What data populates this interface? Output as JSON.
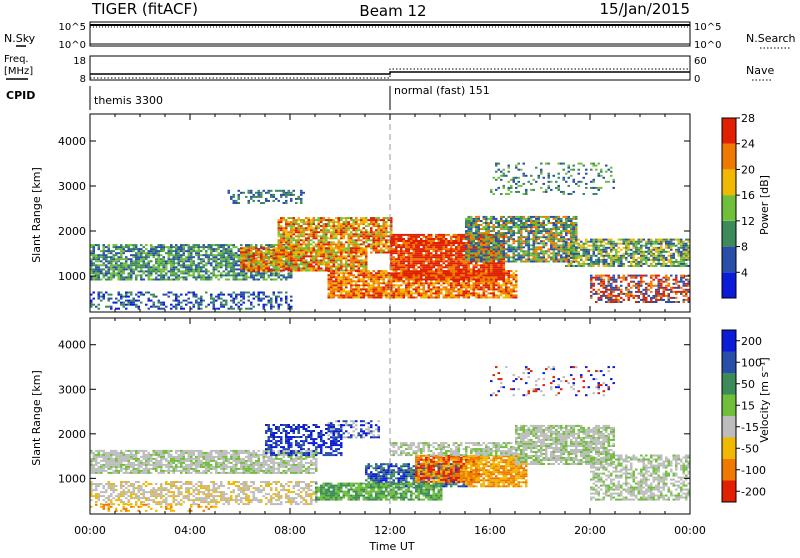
{
  "header": {
    "title": "TIGER (fitACF)",
    "beam": "Beam 12",
    "date": "15/Jan/2015"
  },
  "strip_labels": {
    "nsky": "N.Sky",
    "nsearch": "N.Search",
    "freq_line1": "Freq.",
    "freq_line2": "[MHz]",
    "nave": "Nave",
    "cpid": "CPID"
  },
  "strip_ticks": {
    "nsky_top": "10^5",
    "nsky_bottom": "10^0",
    "nsearch_top": "10^5",
    "nsearch_bottom": "10^0",
    "freq_top": "18",
    "freq_bottom": "8",
    "nave_top": "60",
    "nave_bottom": "0"
  },
  "cpid_segments": [
    {
      "label": "themis 3300",
      "start_hour": 0
    },
    {
      "label": "normal (fast) 151",
      "start_hour": 12
    }
  ],
  "axes": {
    "xlabel": "Time UT",
    "ylabel": "Slant Range [km]",
    "x_ticks": [
      "00:00",
      "04:00",
      "08:00",
      "12:00",
      "16:00",
      "20:00",
      "00:00"
    ],
    "y_ticks": [
      "1000",
      "2000",
      "3000",
      "4000"
    ]
  },
  "colorbars": {
    "power": {
      "label": "Power [dB]",
      "ticks": [
        "4",
        "8",
        "12",
        "16",
        "20",
        "24",
        "28"
      ],
      "colors": [
        "#0a1cd8",
        "#2a4fa8",
        "#3d8a5a",
        "#6fbf3a",
        "#f0b800",
        "#f07a00",
        "#e02000"
      ]
    },
    "velocity": {
      "label": "Velocity [m s⁻¹]",
      "ticks": [
        "200",
        "100",
        "50",
        "15",
        "-15",
        "-50",
        "-100",
        "-200"
      ],
      "colors": [
        "#0a1cd8",
        "#2a4fa8",
        "#3d8a5a",
        "#6fbf3a",
        "#bdbdbd",
        "#f0b800",
        "#f07a00",
        "#e02000"
      ]
    }
  },
  "chart_data": [
    {
      "type": "heatmap",
      "name": "power",
      "title": "",
      "xlabel": "Time UT",
      "ylabel": "Slant Range [km]",
      "xlim": [
        0,
        24
      ],
      "ylim": [
        200,
        4600
      ],
      "bands": [
        {
          "t0": 0.0,
          "t1": 8.0,
          "r0": 900,
          "r1": 1700,
          "levels": [
            1,
            2,
            3
          ],
          "density": 0.75
        },
        {
          "t0": 6.0,
          "t1": 11.0,
          "r0": 1100,
          "r1": 1600,
          "levels": [
            3,
            4,
            5,
            6
          ],
          "density": 0.85
        },
        {
          "t0": 7.5,
          "t1": 12.0,
          "r0": 1500,
          "r1": 2300,
          "levels": [
            3,
            4,
            5,
            6
          ],
          "density": 0.8
        },
        {
          "t0": 9.5,
          "t1": 17.0,
          "r0": 500,
          "r1": 1100,
          "levels": [
            4,
            5,
            6
          ],
          "density": 0.85
        },
        {
          "t0": 12.0,
          "t1": 16.5,
          "r0": 900,
          "r1": 1900,
          "levels": [
            5,
            6,
            6
          ],
          "density": 0.9
        },
        {
          "t0": 15.0,
          "t1": 19.5,
          "r0": 1300,
          "r1": 2300,
          "levels": [
            1,
            2,
            3,
            5
          ],
          "density": 0.8
        },
        {
          "t0": 19.0,
          "t1": 24.0,
          "r0": 1200,
          "r1": 1800,
          "levels": [
            1,
            2,
            3,
            4
          ],
          "density": 0.75
        },
        {
          "t0": 20.0,
          "t1": 24.0,
          "r0": 400,
          "r1": 1000,
          "levels": [
            1,
            5,
            6
          ],
          "density": 0.6
        },
        {
          "t0": 0.0,
          "t1": 8.0,
          "r0": 250,
          "r1": 650,
          "levels": [
            0,
            1,
            2
          ],
          "density": 0.4
        },
        {
          "t0": 5.5,
          "t1": 8.5,
          "r0": 2600,
          "r1": 2900,
          "levels": [
            1,
            2
          ],
          "density": 0.35
        },
        {
          "t0": 16.0,
          "t1": 21.0,
          "r0": 2800,
          "r1": 3500,
          "levels": [
            1,
            2,
            3
          ],
          "density": 0.2
        }
      ]
    },
    {
      "type": "heatmap",
      "name": "velocity",
      "title": "",
      "xlabel": "Time UT",
      "ylabel": "Slant Range [km]",
      "xlim": [
        0,
        24
      ],
      "ylim": [
        200,
        4600
      ],
      "bands": [
        {
          "t0": 0.0,
          "t1": 9.0,
          "r0": 1100,
          "r1": 1600,
          "levels": [
            4,
            4,
            4,
            3
          ],
          "density": 0.8
        },
        {
          "t0": 0.0,
          "t1": 9.0,
          "r0": 400,
          "r1": 900,
          "levels": [
            4,
            4,
            5
          ],
          "density": 0.55
        },
        {
          "t0": 7.0,
          "t1": 10.0,
          "r0": 1500,
          "r1": 2200,
          "levels": [
            0,
            1
          ],
          "density": 0.55
        },
        {
          "t0": 9.5,
          "t1": 11.5,
          "r0": 1900,
          "r1": 2300,
          "levels": [
            0,
            1,
            4
          ],
          "density": 0.5
        },
        {
          "t0": 11.0,
          "t1": 15.0,
          "r0": 800,
          "r1": 1300,
          "levels": [
            0,
            1,
            2
          ],
          "density": 0.7
        },
        {
          "t0": 9.0,
          "t1": 14.0,
          "r0": 500,
          "r1": 900,
          "levels": [
            2,
            3
          ],
          "density": 0.8
        },
        {
          "t0": 13.0,
          "t1": 15.5,
          "r0": 900,
          "r1": 1500,
          "levels": [
            7,
            6,
            5
          ],
          "density": 0.85
        },
        {
          "t0": 15.0,
          "t1": 17.5,
          "r0": 800,
          "r1": 1500,
          "levels": [
            5,
            6
          ],
          "density": 0.8
        },
        {
          "t0": 12.0,
          "t1": 17.0,
          "r0": 1500,
          "r1": 1800,
          "levels": [
            4,
            4,
            3
          ],
          "density": 0.7
        },
        {
          "t0": 17.0,
          "t1": 21.0,
          "r0": 1300,
          "r1": 2200,
          "levels": [
            4,
            4,
            3
          ],
          "density": 0.8
        },
        {
          "t0": 20.0,
          "t1": 24.0,
          "r0": 500,
          "r1": 1500,
          "levels": [
            4,
            4,
            3
          ],
          "density": 0.6
        },
        {
          "t0": 0.0,
          "t1": 5.0,
          "r0": 250,
          "r1": 400,
          "levels": [
            5,
            6
          ],
          "density": 0.35
        },
        {
          "t0": 16.0,
          "t1": 21.0,
          "r0": 2800,
          "r1": 3500,
          "levels": [
            0,
            4,
            7
          ],
          "density": 0.15
        }
      ]
    }
  ]
}
